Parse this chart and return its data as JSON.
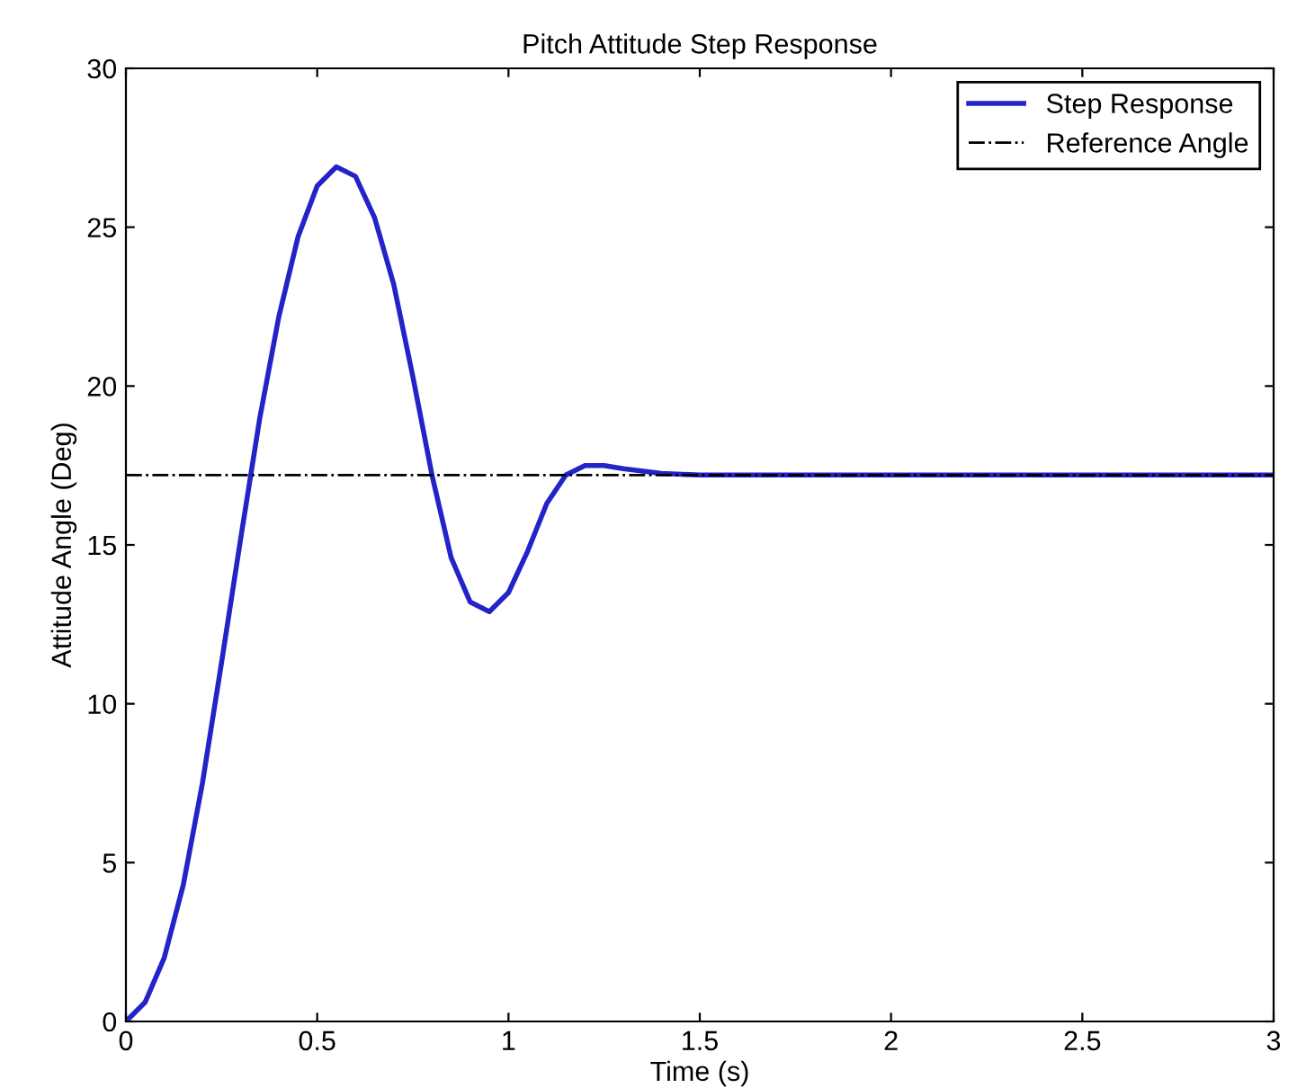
{
  "chart_data": {
    "type": "line",
    "title": "Pitch Attitude Step Response",
    "xlabel": "Time (s)",
    "ylabel": "Attitude Angle (Deg)",
    "series": [
      {
        "name": "Step Response",
        "color": "#2323c8",
        "line_style": "solid",
        "x": [
          0,
          0.05,
          0.1,
          0.15,
          0.2,
          0.25,
          0.3,
          0.35,
          0.4,
          0.45,
          0.5,
          0.55,
          0.6,
          0.65,
          0.7,
          0.75,
          0.8,
          0.85,
          0.9,
          0.95,
          1.0,
          1.05,
          1.1,
          1.15,
          1.2,
          1.25,
          1.3,
          1.4,
          1.5,
          1.75,
          3.0
        ],
        "values": [
          0,
          0.6,
          2.0,
          4.3,
          7.5,
          11.3,
          15.2,
          19.0,
          22.2,
          24.7,
          26.3,
          26.9,
          26.6,
          25.3,
          23.2,
          20.3,
          17.2,
          14.6,
          13.2,
          12.9,
          13.5,
          14.8,
          16.3,
          17.2,
          17.5,
          17.5,
          17.4,
          17.25,
          17.2,
          17.2,
          17.2
        ]
      },
      {
        "name": "Reference Angle",
        "color": "#000000",
        "line_style": "dashdot",
        "x": [
          0,
          3
        ],
        "values": [
          17.2,
          17.2
        ]
      }
    ],
    "xlim": [
      0,
      3
    ],
    "xticks": [
      0,
      0.5,
      1,
      1.5,
      2,
      2.5,
      3
    ],
    "ylim": [
      0,
      30
    ],
    "yticks": [
      0,
      5,
      10,
      15,
      20,
      25,
      30
    ],
    "grid": false,
    "legend": "top right"
  }
}
